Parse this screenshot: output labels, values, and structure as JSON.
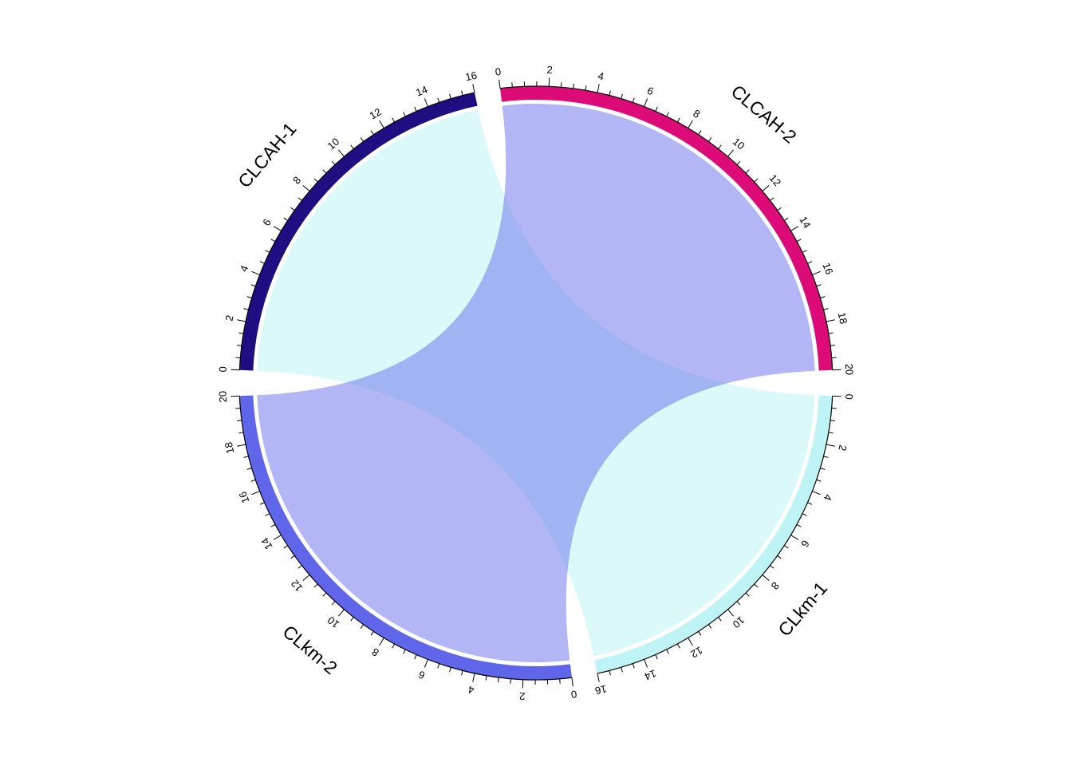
{
  "chart_data": {
    "type": "chord",
    "title": "",
    "sectors": [
      {
        "name": "CLCAH-1",
        "length": 16,
        "color": "#1F0E82",
        "tick_labels": [
          "0",
          "2",
          "4",
          "6",
          "8",
          "10",
          "12",
          "14",
          "16"
        ]
      },
      {
        "name": "CLCAH-2",
        "length": 20,
        "color": "#DC0B78",
        "tick_labels": [
          "0",
          "2",
          "4",
          "6",
          "8",
          "10",
          "12",
          "14",
          "16",
          "18",
          "20"
        ]
      },
      {
        "name": "CLkm-1",
        "length": 16,
        "color": "#BFF4F6",
        "tick_labels": [
          "0",
          "2",
          "4",
          "6",
          "8",
          "10",
          "12",
          "14",
          "16"
        ]
      },
      {
        "name": "CLkm-2",
        "length": 20,
        "color": "#5F66EA",
        "tick_labels": [
          "0",
          "2",
          "4",
          "6",
          "8",
          "10",
          "12",
          "14",
          "16",
          "18",
          "20"
        ]
      }
    ],
    "links": [
      {
        "from": "CLCAH-1",
        "from_range": [
          0,
          16
        ],
        "to": "CLkm-1",
        "to_range": [
          0,
          16
        ],
        "color": "#BFF4F6",
        "opacity": 0.55
      },
      {
        "from": "CLCAH-2",
        "from_range": [
          0,
          20
        ],
        "to": "CLkm-2",
        "to_range": [
          0,
          20
        ],
        "color": "#5F66EA",
        "opacity": 0.48
      }
    ],
    "major_tick_step": 2,
    "minor_tick_step": 0.5
  }
}
